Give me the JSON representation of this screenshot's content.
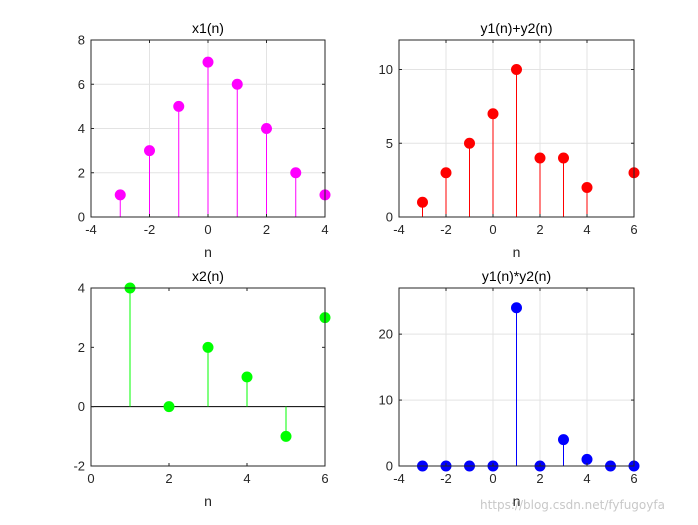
{
  "watermark": "https://blog.csdn.net/fyfugoyfa",
  "chart_data": [
    {
      "type": "stem",
      "title": "x1(n)",
      "xlabel": "n",
      "ylabel": "",
      "xlim": [
        -4,
        4
      ],
      "ylim": [
        0,
        8
      ],
      "xticks": [
        -4,
        -2,
        0,
        2,
        4
      ],
      "yticks": [
        0,
        2,
        4,
        6,
        8
      ],
      "grid": true,
      "color": "#ff00ff",
      "x": [
        -3,
        -2,
        -1,
        0,
        1,
        2,
        3,
        4
      ],
      "values": [
        1,
        3,
        5,
        7,
        6,
        4,
        2,
        1
      ]
    },
    {
      "type": "stem",
      "title": "y1(n)+y2(n)",
      "xlabel": "n",
      "ylabel": "",
      "xlim": [
        -4,
        6
      ],
      "ylim": [
        0,
        12
      ],
      "xticks": [
        -4,
        -2,
        0,
        2,
        4,
        6
      ],
      "yticks": [
        0,
        5,
        10
      ],
      "grid": true,
      "color": "#ff0000",
      "x": [
        -3,
        -2,
        -1,
        0,
        1,
        2,
        3,
        4,
        6
      ],
      "values": [
        1,
        3,
        5,
        7,
        10,
        4,
        4,
        2,
        3
      ]
    },
    {
      "type": "stem",
      "title": "x2(n)",
      "xlabel": "n",
      "ylabel": "",
      "xlim": [
        0,
        6
      ],
      "ylim": [
        -2,
        4
      ],
      "xticks": [
        0,
        2,
        4,
        6
      ],
      "yticks": [
        -2,
        0,
        2,
        4
      ],
      "grid": false,
      "baseline": true,
      "color": "#00ff00",
      "x": [
        1,
        2,
        3,
        4,
        5,
        6
      ],
      "values": [
        4,
        0,
        2,
        1,
        -1,
        3
      ]
    },
    {
      "type": "stem",
      "title": "y1(n)*y2(n)",
      "xlabel": "n",
      "ylabel": "",
      "xlim": [
        -4,
        6
      ],
      "ylim": [
        0,
        27
      ],
      "xticks": [
        -4,
        -2,
        0,
        2,
        4,
        6
      ],
      "yticks": [
        0,
        10,
        20
      ],
      "grid": true,
      "color": "#0000ff",
      "x": [
        -3,
        -2,
        -1,
        0,
        1,
        2,
        3,
        4,
        5,
        6
      ],
      "values": [
        0,
        0,
        0,
        0,
        24,
        0,
        4,
        1,
        0,
        0
      ]
    }
  ]
}
